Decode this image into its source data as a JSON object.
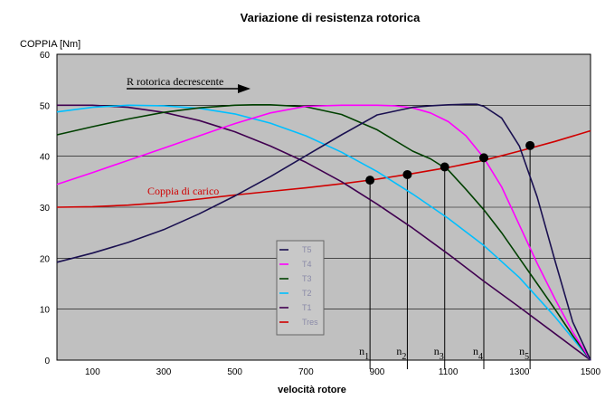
{
  "chart_data": {
    "type": "line",
    "title": "Variazione di resistenza rotorica",
    "ylabel": "COPPIA [Nm]",
    "xlabel": "velocità rotore",
    "xlim": [
      0,
      1500
    ],
    "ylim": [
      0,
      60
    ],
    "x_ticks": [
      100,
      300,
      500,
      700,
      900,
      1100,
      1300,
      1500
    ],
    "y_ticks": [
      0,
      10,
      20,
      30,
      40,
      50,
      60
    ],
    "grid": "horizontal",
    "plot_background": "#c0c0c0",
    "legend_position": "center-left",
    "series": [
      {
        "name": "T5",
        "color": "#1a1050",
        "x": [
          0,
          100,
          200,
          300,
          400,
          500,
          600,
          700,
          800,
          900,
          1000,
          1050,
          1100,
          1150,
          1180,
          1200,
          1250,
          1300,
          1350,
          1400,
          1450,
          1500
        ],
        "y": [
          19.2,
          21,
          23.1,
          25.6,
          28.7,
          32.2,
          36,
          40.1,
          44.2,
          48.1,
          49.6,
          49.9,
          50.1,
          50.2,
          50.2,
          49.8,
          47.5,
          42,
          32,
          19.5,
          7.5,
          0
        ]
      },
      {
        "name": "T4",
        "color": "#ff00ff",
        "x": [
          0,
          100,
          200,
          300,
          400,
          500,
          600,
          700,
          800,
          900,
          950,
          1000,
          1050,
          1100,
          1150,
          1200,
          1250,
          1300,
          1350,
          1400,
          1450,
          1500
        ],
        "y": [
          34.5,
          36.8,
          39.2,
          41.6,
          44,
          46.4,
          48.5,
          49.8,
          50,
          50,
          49.9,
          49.5,
          48.5,
          46.8,
          44,
          39.7,
          34,
          26.5,
          19,
          12,
          5.5,
          0
        ]
      },
      {
        "name": "T3",
        "color": "#004000",
        "x": [
          0,
          100,
          200,
          300,
          400,
          500,
          550,
          600,
          700,
          800,
          900,
          1000,
          1050,
          1100,
          1150,
          1200,
          1250,
          1300,
          1350,
          1400,
          1450,
          1500
        ],
        "y": [
          44.2,
          45.8,
          47.3,
          48.6,
          49.5,
          50,
          50.1,
          50.1,
          49.7,
          48.2,
          45.2,
          41,
          39.5,
          37.3,
          33.5,
          29.5,
          25,
          20,
          15,
          10,
          4.8,
          0
        ]
      },
      {
        "name": "T2",
        "color": "#00bfff",
        "x": [
          0,
          100,
          200,
          300,
          400,
          500,
          600,
          700,
          800,
          900,
          1000,
          1100,
          1200,
          1300,
          1400,
          1500
        ],
        "y": [
          48.7,
          49.6,
          50,
          49.9,
          49.4,
          48.3,
          46.5,
          44,
          40.8,
          37,
          32.6,
          27.8,
          22.5,
          16.2,
          8.5,
          0
        ]
      },
      {
        "name": "T1",
        "color": "#400050",
        "x": [
          0,
          100,
          200,
          300,
          400,
          500,
          600,
          700,
          800,
          900,
          1000,
          1100,
          1200,
          1300,
          1400,
          1500
        ],
        "y": [
          50,
          50,
          49.6,
          48.6,
          47,
          44.8,
          42,
          38.8,
          35,
          30.6,
          25.9,
          20.8,
          15.5,
          10.4,
          5.2,
          0
        ]
      },
      {
        "name": "Tres",
        "color": "#d00000",
        "x": [
          0,
          100,
          200,
          300,
          400,
          500,
          600,
          700,
          800,
          900,
          1000,
          1100,
          1200,
          1300,
          1400,
          1500
        ],
        "y": [
          30,
          30.1,
          30.4,
          30.9,
          31.6,
          32.4,
          33.1,
          33.8,
          34.6,
          35.5,
          36.6,
          37.8,
          39.2,
          41,
          42.9,
          45
        ]
      }
    ],
    "operating_points": [
      {
        "label_main": "n",
        "label_sub": "1",
        "x": 880,
        "y": 35.3
      },
      {
        "label_main": "n",
        "label_sub": "2",
        "x": 985,
        "y": 36.4
      },
      {
        "label_main": "n",
        "label_sub": "3",
        "x": 1090,
        "y": 37.9
      },
      {
        "label_main": "n",
        "label_sub": "4",
        "x": 1200,
        "y": 39.7
      },
      {
        "label_main": "n",
        "label_sub": "5",
        "x": 1330,
        "y": 42.1
      }
    ],
    "annotations": {
      "arrow_text": "R rotorica decrescente",
      "load_text": "Coppia di carico",
      "load_color": "#d00000"
    }
  }
}
